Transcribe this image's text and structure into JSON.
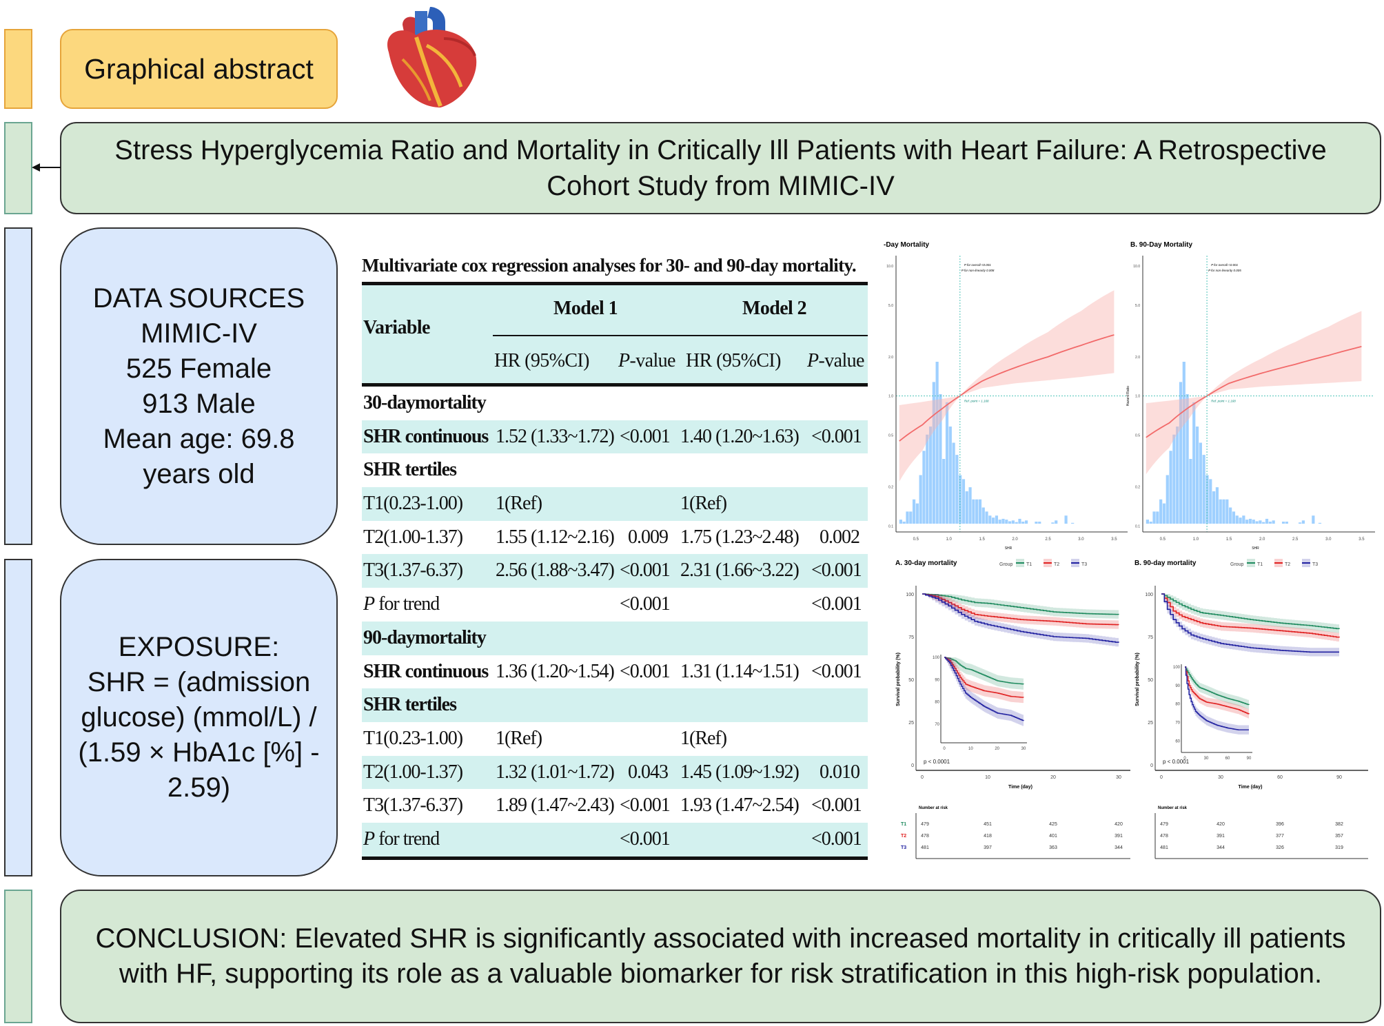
{
  "graphical_abstract_label": "Graphical abstract",
  "heart_icon": "anatomical-heart",
  "title": "Stress Hyperglycemia Ratio and Mortality in Critically Ill Patients with Heart Failure: A Retrospective Cohort Study from MIMIC-IV",
  "data_sources": {
    "lines": [
      "DATA SOURCES",
      "MIMIC-IV",
      "525 Female",
      "913 Male",
      "Mean age: 69.8",
      "years old"
    ]
  },
  "exposure": {
    "lines": [
      "EXPOSURE:",
      "SHR = (admission",
      "glucose) (mmol/L) /",
      "(1.59 × HbA1c [%] -",
      "2.59)"
    ]
  },
  "conclusion": "CONCLUSION: Elevated SHR is significantly associated with increased mortality in critically ill patients with HF, supporting its role as a valuable biomarker for risk stratification in this high-risk population.",
  "colors": {
    "yellow": "#fcd87e",
    "green_box": "#d5e8d4",
    "blue_box": "#dae8fc",
    "table_shade": "#d3f1ef",
    "T1": "#1e8a5e",
    "T2": "#e02020",
    "T3": "#2020a0",
    "rcs_line": "#f26a6a",
    "histogram": "#9fd0ff"
  },
  "table": {
    "caption": "Multivariate cox regression analyses for 30- and 90-day mortality.",
    "header": {
      "variable": "Variable",
      "model1": "Model 1",
      "model2": "Model 2",
      "hr": "HR (95%CI)",
      "p_prefix": "P",
      "p_suffix": "-value"
    },
    "rows": [
      {
        "label": "30-daymortality",
        "type": "section",
        "cells": [
          "",
          "",
          "",
          ""
        ]
      },
      {
        "label": "SHR continuous",
        "type": "bold",
        "cells": [
          "1.52 (1.33~1.72)",
          "<0.001",
          "1.40 (1.20~1.63)",
          "<0.001"
        ]
      },
      {
        "label": "SHR tertiles",
        "type": "section",
        "cells": [
          "",
          "",
          "",
          ""
        ]
      },
      {
        "label": "T1(0.23-1.00)",
        "type": "normal",
        "cells": [
          "1(Ref)",
          "",
          "1(Ref)",
          ""
        ]
      },
      {
        "label": "T2(1.00-1.37)",
        "type": "normal",
        "cells": [
          "1.55 (1.12~2.16)",
          "0.009",
          "1.75 (1.23~2.48)",
          "0.002"
        ]
      },
      {
        "label": "T3(1.37-6.37)",
        "type": "normal",
        "cells": [
          "2.56 (1.88~3.47)",
          "<0.001",
          "2.31 (1.66~3.22)",
          "<0.001"
        ]
      },
      {
        "label": "P for trend",
        "type": "italic",
        "cells": [
          "",
          "<0.001",
          "",
          "<0.001"
        ]
      },
      {
        "label": "90-daymortality",
        "type": "section",
        "cells": [
          "",
          "",
          "",
          ""
        ]
      },
      {
        "label": "SHR continuous",
        "type": "bold",
        "cells": [
          "1.36 (1.20~1.54)",
          "<0.001",
          "1.31 (1.14~1.51)",
          "<0.001"
        ]
      },
      {
        "label": "SHR tertiles",
        "type": "section",
        "cells": [
          "",
          "",
          "",
          ""
        ]
      },
      {
        "label": "T1(0.23-1.00)",
        "type": "normal",
        "cells": [
          "1(Ref)",
          "",
          "1(Ref)",
          ""
        ]
      },
      {
        "label": "T2(1.00-1.37)",
        "type": "normal",
        "cells": [
          "1.32 (1.01~1.72)",
          "0.043",
          "1.45 (1.09~1.92)",
          "0.010"
        ]
      },
      {
        "label": "T3(1.37-6.37)",
        "type": "normal",
        "cells": [
          "1.89 (1.47~2.43)",
          "<0.001",
          "1.93 (1.47~2.54)",
          "<0.001"
        ]
      },
      {
        "label": "P for trend",
        "type": "italic",
        "cells": [
          "",
          "<0.001",
          "",
          "<0.001"
        ]
      }
    ]
  },
  "chart_data": [
    {
      "type": "line",
      "title": "-Day Mortality",
      "xlabel": "SHR",
      "ylabel": "",
      "x_ticks": [
        "0.5",
        "1.0",
        "1.5",
        "2.0",
        "2.5",
        "3.0",
        "3.5"
      ],
      "y_ticks": [
        "0.1",
        "0.2",
        "0.5",
        "1.0",
        "2.0",
        "5.0",
        "10.0"
      ],
      "y_scale": "log",
      "xlim": [
        0.2,
        3.6
      ],
      "ylim": [
        0.09,
        12
      ],
      "annotations": [
        "P for overall <0.001",
        "P for non-linearity 0.008",
        "Ref. point = 1.168"
      ],
      "ref_point": 1.168,
      "curve": {
        "x": [
          0.25,
          0.6,
          0.9,
          1.168,
          1.5,
          2.0,
          2.5,
          3.0,
          3.5
        ],
        "hr": [
          0.45,
          0.6,
          0.8,
          1.0,
          1.3,
          1.65,
          2.0,
          2.45,
          2.95
        ],
        "lower": [
          0.22,
          0.38,
          0.65,
          1.0,
          1.15,
          1.25,
          1.32,
          1.4,
          1.5
        ],
        "upper": [
          0.85,
          0.9,
          0.95,
          1.0,
          1.45,
          2.2,
          3.1,
          4.5,
          6.5
        ]
      },
      "histogram": {
        "bin_start": 0.25,
        "bin_width": 0.05,
        "relative_frequency": [
          1,
          0.5,
          3,
          3,
          6,
          5,
          12,
          18,
          22,
          24,
          35,
          40,
          32,
          16,
          30,
          24,
          20,
          17,
          12,
          11,
          8,
          9,
          6,
          6,
          6,
          4,
          3,
          2,
          1.5,
          2,
          1,
          1.2,
          1,
          0.6,
          0.8,
          0.4,
          1.2,
          0.5,
          0.8,
          0,
          0,
          0.5,
          0.5,
          0,
          0,
          0,
          0.3,
          0.8,
          0,
          0,
          2,
          0,
          0.2
        ]
      },
      "grid": false
    },
    {
      "type": "line",
      "title": "B. 90-Day Mortality",
      "xlabel": "SHR",
      "ylabel": "Hazard Ratio",
      "x_ticks": [
        "0.5",
        "1.0",
        "1.5",
        "2.0",
        "2.5",
        "3.0",
        "3.5"
      ],
      "y_ticks": [
        "0.1",
        "0.2",
        "0.5",
        "1.0",
        "2.0",
        "5.0",
        "10.0"
      ],
      "y_scale": "log",
      "xlim": [
        0.2,
        3.6
      ],
      "ylim": [
        0.09,
        12
      ],
      "annotations": [
        "P for overall <0.001",
        "P for non-linearity 0.005",
        "Ref. point = 1.168"
      ],
      "ref_point": 1.168,
      "curve": {
        "x": [
          0.25,
          0.6,
          0.9,
          1.168,
          1.5,
          2.0,
          2.5,
          3.0,
          3.5
        ],
        "hr": [
          0.48,
          0.62,
          0.82,
          1.0,
          1.25,
          1.5,
          1.75,
          2.05,
          2.4
        ],
        "lower": [
          0.25,
          0.4,
          0.67,
          1.0,
          1.12,
          1.18,
          1.22,
          1.26,
          1.3
        ],
        "upper": [
          0.88,
          0.92,
          0.96,
          1.0,
          1.4,
          1.95,
          2.6,
          3.4,
          4.5
        ]
      },
      "histogram": {
        "bin_start": 0.25,
        "bin_width": 0.05,
        "relative_frequency": [
          1,
          0.5,
          3,
          3,
          6,
          5,
          12,
          18,
          22,
          24,
          35,
          40,
          32,
          16,
          30,
          24,
          20,
          17,
          12,
          11,
          8,
          9,
          6,
          6,
          6,
          4,
          3,
          2,
          1.5,
          2,
          1,
          1.2,
          1,
          0.6,
          0.8,
          0.4,
          1.2,
          0.5,
          0.8,
          0,
          0,
          0.5,
          0.5,
          0,
          0,
          0,
          0.3,
          0.8,
          0,
          0,
          2,
          0,
          0.2
        ]
      },
      "grid": false
    },
    {
      "type": "line",
      "title": "A. 30-day mortality",
      "xlabel": "Time (day)",
      "ylabel": "Survival probability (%)",
      "legend_title": "Group",
      "legend_placement": "top-right",
      "x_ticks": [
        0,
        10,
        20,
        30
      ],
      "y_ticks": [
        0,
        25,
        50,
        75,
        100
      ],
      "xlim": [
        0,
        30
      ],
      "ylim": [
        0,
        100
      ],
      "p_value": "p < 0.0001",
      "inset": {
        "x_ticks": [
          0,
          10,
          20,
          30
        ],
        "y_ticks": [
          70,
          80,
          90,
          100
        ],
        "ylim": [
          66,
          100
        ]
      },
      "x": [
        0,
        2,
        4,
        6,
        8,
        10,
        15,
        20,
        25,
        30
      ],
      "series": [
        {
          "name": "T1",
          "values": [
            100,
            99.5,
            98.5,
            96.5,
            95,
            94.5,
            92,
            89.5,
            88.5,
            88
          ]
        },
        {
          "name": "T2",
          "values": [
            100,
            98.5,
            95,
            91,
            88,
            87,
            85,
            84,
            82.5,
            82
          ]
        },
        {
          "name": "T3",
          "values": [
            100,
            97.5,
            93,
            88,
            84,
            82,
            78,
            75,
            74,
            71.5
          ]
        }
      ],
      "risk_table": {
        "title": "Number at risk",
        "times": [
          0,
          10,
          20,
          30
        ],
        "rows": [
          {
            "name": "T1",
            "values": [
              479,
              451,
              425,
              420
            ]
          },
          {
            "name": "T2",
            "values": [
              478,
              418,
              401,
              391
            ]
          },
          {
            "name": "T3",
            "values": [
              481,
              397,
              363,
              344
            ]
          }
        ]
      }
    },
    {
      "type": "line",
      "title": "B. 90-day mortality",
      "xlabel": "Time (day)",
      "ylabel": "Survival probability (%)",
      "legend_title": "Group",
      "legend_placement": "top-right",
      "x_ticks": [
        0,
        30,
        60,
        90
      ],
      "y_ticks": [
        0,
        25,
        50,
        75,
        100
      ],
      "xlim": [
        0,
        90
      ],
      "ylim": [
        0,
        100
      ],
      "p_value": "p < 0.0001",
      "inset": {
        "x_ticks": [
          0,
          30,
          60,
          90
        ],
        "y_ticks": [
          60,
          70,
          80,
          90,
          100
        ],
        "ylim": [
          59,
          100
        ]
      },
      "x": [
        0,
        3,
        6,
        10,
        15,
        20,
        30,
        45,
        60,
        75,
        90
      ],
      "series": [
        {
          "name": "T1",
          "values": [
            100,
            98,
            96,
            93.5,
            91,
            89,
            87.5,
            85,
            83,
            81.5,
            79.5
          ]
        },
        {
          "name": "T2",
          "values": [
            100,
            95,
            90,
            87,
            85,
            83,
            81,
            80,
            78.5,
            77,
            74.5
          ]
        },
        {
          "name": "T3",
          "values": [
            100,
            91,
            85,
            80,
            76,
            74,
            71,
            68.5,
            67,
            66,
            66
          ]
        }
      ],
      "risk_table": {
        "title": "Number at risk",
        "times": [
          0,
          30,
          60,
          90
        ],
        "rows": [
          {
            "name": "T1",
            "values": [
              479,
              420,
              396,
              382
            ]
          },
          {
            "name": "T2",
            "values": [
              478,
              391,
              377,
              357
            ]
          },
          {
            "name": "T3",
            "values": [
              481,
              344,
              326,
              319
            ]
          }
        ]
      }
    }
  ]
}
